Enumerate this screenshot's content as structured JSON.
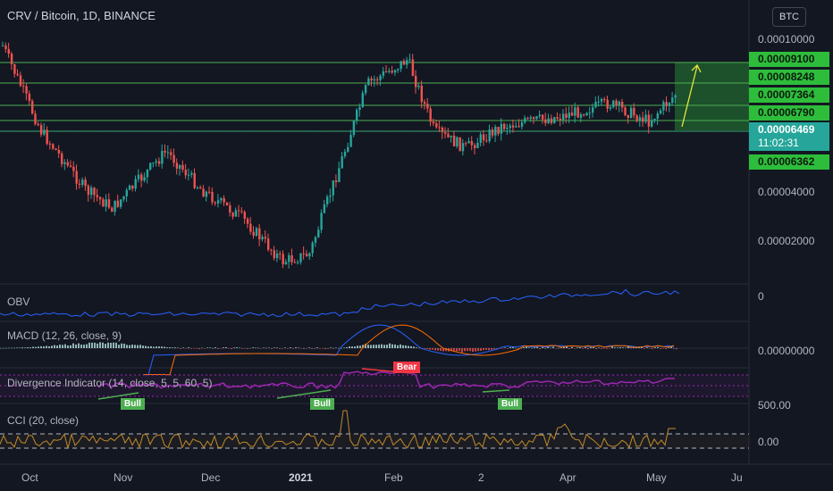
{
  "header": {
    "symbol_title": "CRV / Bitcoin, 1D, BINANCE",
    "currency_button": "BTC"
  },
  "price_axis": {
    "labels": [
      "0.00010000",
      "0.00004000",
      "0.00002000"
    ],
    "tags": {
      "t1": "0.00009100",
      "t2": "0.00008248",
      "t3": "0.00007364",
      "t4": "0.00006790",
      "t5": "0.00006362",
      "current_price": "0.00006469",
      "countdown": "11:02:31"
    }
  },
  "indicators": {
    "obv": {
      "label": "OBV",
      "axis_value": "0"
    },
    "macd": {
      "label": "MACD (12, 26, close, 9)",
      "axis_value": "0.00000000"
    },
    "divergence": {
      "label": "Divergence Indicator (14, close, 5, 5, 60, 5)",
      "bull_label": "Bull",
      "bear_label": "Bear"
    },
    "cci": {
      "label": "CCI (20, close)",
      "axis_values": [
        "500.00",
        "0.00"
      ]
    }
  },
  "time_axis": [
    "Oct",
    "Nov",
    "Dec",
    "2021",
    "Feb",
    "2",
    "Apr",
    "May",
    "Ju"
  ],
  "colors": {
    "background": "#131722",
    "up": "#26a69a",
    "down": "#ef5350",
    "level_line": "#4caf50",
    "projection_arrow": "#e6e63c",
    "obv_line": "#2962ff",
    "divergence_line": "#9c27b0",
    "cci_line": "#c08a2a"
  },
  "chart_data": {
    "type": "candlestick",
    "symbol": "CRV / Bitcoin",
    "interval": "1D",
    "exchange": "BINANCE",
    "levels": [
      9.1e-05,
      8.248e-05,
      7.364e-05,
      6.79e-05,
      6.362e-05
    ],
    "current_price": 6.469e-05,
    "close_path": [
      {
        "x": "Oct",
        "y": 9.5e-05
      },
      {
        "x": "Oct-mid",
        "y": 4.8e-05
      },
      {
        "x": "Nov",
        "y": 3e-05
      },
      {
        "x": "Nov-mid",
        "y": 2.6e-05
      },
      {
        "x": "Nov-end",
        "y": 4.1e-05
      },
      {
        "x": "Dec",
        "y": 3e-05
      },
      {
        "x": "Dec-mid",
        "y": 2.4e-05
      },
      {
        "x": "Dec-end",
        "y": 1.7e-05
      },
      {
        "x": "2021",
        "y": 1.8e-05
      },
      {
        "x": "Jan-mid",
        "y": 7e-05
      },
      {
        "x": "Feb",
        "y": 8.5e-05
      },
      {
        "x": "Feb-mid",
        "y": 4.8e-05
      },
      {
        "x": "2",
        "y": 4.2e-05
      },
      {
        "x": "Mar-mid",
        "y": 5e-05
      },
      {
        "x": "Apr",
        "y": 5.4e-05
      },
      {
        "x": "Apr-mid",
        "y": 6e-05
      },
      {
        "x": "May",
        "y": 5.2e-05
      },
      {
        "x": "May-now",
        "y": 6.469e-05
      }
    ]
  }
}
